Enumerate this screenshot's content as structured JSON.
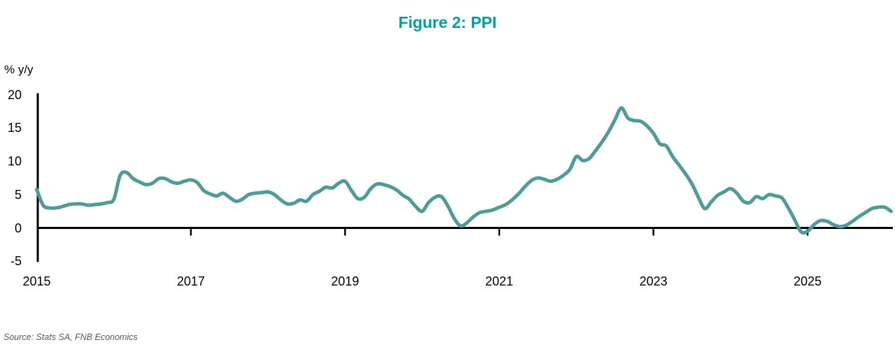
{
  "page_title": "Figure 2: PPI",
  "colors": {
    "title": "#00A09B",
    "line": "#4E9C98",
    "axis": "#000000",
    "source_text": "#595959"
  },
  "chart_data": {
    "type": "line",
    "title": "Figure 2: PPI",
    "ylabel": "% y/y",
    "xlabel": "",
    "ylim": [
      -5,
      20
    ],
    "y_ticks": [
      20,
      15,
      10,
      5,
      0,
      -5
    ],
    "x_ticks": [
      "2015",
      "2017",
      "2019",
      "2021",
      "2023",
      "2025"
    ],
    "grid": false,
    "legend": "none",
    "line_color": "#4E9C98",
    "frequency": "monthly",
    "start_label": "2014-12",
    "end_label": "2026-01",
    "series": [
      {
        "name": "PPI % y/y",
        "values": [
          5.8,
          3.4,
          3.0,
          3.0,
          3.2,
          3.5,
          3.6,
          3.6,
          3.4,
          3.5,
          3.6,
          3.8,
          4.3,
          7.9,
          8.3,
          7.4,
          6.9,
          6.5,
          6.7,
          7.4,
          7.4,
          6.9,
          6.7,
          7.0,
          7.2,
          6.8,
          5.6,
          5.1,
          4.8,
          5.2,
          4.6,
          4.0,
          4.3,
          5.0,
          5.2,
          5.3,
          5.4,
          5.0,
          4.2,
          3.6,
          3.7,
          4.2,
          4.0,
          5.0,
          5.5,
          6.1,
          6.0,
          6.7,
          7.0,
          5.6,
          4.4,
          4.6,
          5.9,
          6.6,
          6.5,
          6.2,
          5.7,
          4.9,
          4.3,
          3.2,
          2.5,
          3.8,
          4.6,
          4.7,
          3.3,
          1.4,
          0.3,
          0.8,
          1.7,
          2.3,
          2.5,
          2.7,
          3.1,
          3.5,
          4.2,
          5.1,
          6.2,
          7.1,
          7.5,
          7.3,
          7.0,
          7.3,
          7.9,
          8.8,
          10.7,
          10.1,
          10.4,
          11.6,
          12.9,
          14.4,
          16.2,
          18.0,
          16.5,
          16.1,
          16.0,
          15.3,
          14.2,
          12.6,
          12.3,
          10.7,
          9.4,
          8.1,
          6.6,
          4.6,
          2.9,
          3.9,
          4.9,
          5.4,
          5.9,
          5.2,
          4.0,
          3.8,
          4.7,
          4.4,
          5.0,
          4.8,
          4.5,
          3.0,
          1.2,
          -0.6,
          -0.5,
          0.5,
          1.1,
          1.0,
          0.5,
          0.2,
          0.4,
          1.0,
          1.7,
          2.3,
          2.9,
          3.1,
          3.1,
          2.5
        ]
      }
    ],
    "source": "Source: Stats SA, FNB Economics"
  }
}
